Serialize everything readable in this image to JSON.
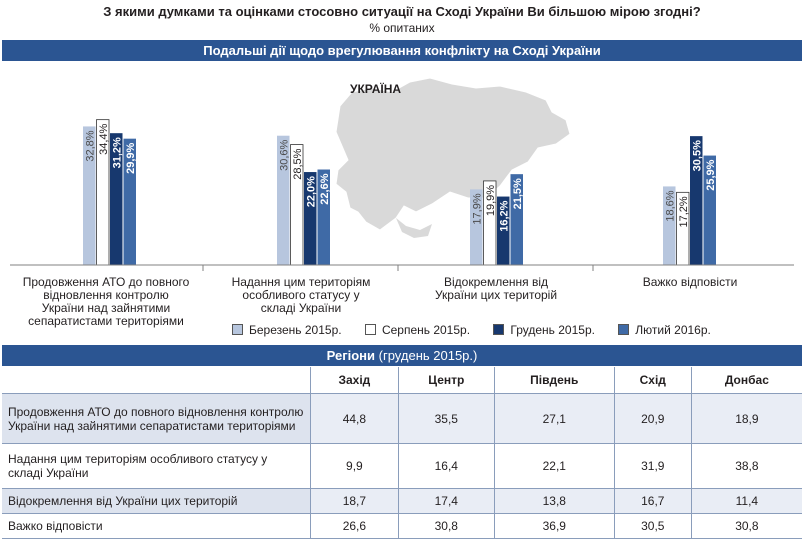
{
  "title": "З якими думками та оцінками стосовно ситуації на Сході України Ви більшою мірою згодні?",
  "subtitle": "% опитаних",
  "section_chart_title": "Подальші дії щодо врегулювання конфлікту на Сході України",
  "map_label": "УКРАЇНА",
  "colors": {
    "band": "#2b5592",
    "s1": "#b7c6de",
    "s2": "#ffffff",
    "s3": "#17386e",
    "s4": "#3f6aa6",
    "map": "#d9d9d9"
  },
  "chart_data": {
    "type": "bar",
    "categories": [
      "Продовження АТО до повного відновлення контролю України над зайнятими сепаратистами територіями",
      "Надання цим територіям особливого статусу у складі України",
      "Відокремлення від України цих територій",
      "Важко відповісти"
    ],
    "category_lines": [
      [
        "Продовження АТО до повного",
        "відновлення контролю",
        "України над зайнятими",
        "сепаратистами територіями"
      ],
      [
        "Надання цим територіям",
        "особливого статусу у",
        "складі України"
      ],
      [
        "Відокремлення від",
        "України цих територій"
      ],
      [
        "Важко відповісти"
      ]
    ],
    "series": [
      {
        "name": "Березень 2015р.",
        "values": [
          32.8,
          30.6,
          17.9,
          18.6
        ],
        "labels": [
          "32,8%",
          "30,6%",
          "17,9%",
          "18,6%"
        ]
      },
      {
        "name": "Серпень 2015р.",
        "values": [
          34.4,
          28.5,
          19.9,
          17.2
        ],
        "labels": [
          "34,4%",
          "28,5%",
          "19,9%",
          "17,2%"
        ]
      },
      {
        "name": "Грудень 2015р.",
        "values": [
          31.2,
          22.0,
          16.2,
          30.5
        ],
        "labels": [
          "31,2%",
          "22,0%",
          "16,2%",
          "30,5%"
        ]
      },
      {
        "name": "Лютий 2016р.",
        "values": [
          29.9,
          22.6,
          21.5,
          25.9
        ],
        "labels": [
          "29,9%",
          "22,6%",
          "21,5%",
          "25,9%"
        ]
      }
    ],
    "ylim": [
      0,
      40
    ],
    "grid": false,
    "legend_position": "bottom"
  },
  "regions": {
    "title": "Регіони",
    "subtitle": "(грудень 2015р.)",
    "columns": [
      "Захід",
      "Центр",
      "Південь",
      "Схід",
      "Донбас"
    ],
    "rows": [
      {
        "label": "Продовження АТО до повного відновлення контролю України над зайнятими сепаратистами територіями",
        "values": [
          "44,8",
          "35,5",
          "27,1",
          "20,9",
          "18,9"
        ]
      },
      {
        "label": "Надання цим територіям особливого статусу у складі України",
        "values": [
          "9,9",
          "16,4",
          "22,1",
          "31,9",
          "38,8"
        ]
      },
      {
        "label": "Відокремлення від України цих територій",
        "values": [
          "18,7",
          "17,4",
          "13,8",
          "16,7",
          "11,4"
        ]
      },
      {
        "label": "Важко відповісти",
        "values": [
          "26,6",
          "30,8",
          "36,9",
          "30,5",
          "30,8"
        ]
      }
    ]
  }
}
